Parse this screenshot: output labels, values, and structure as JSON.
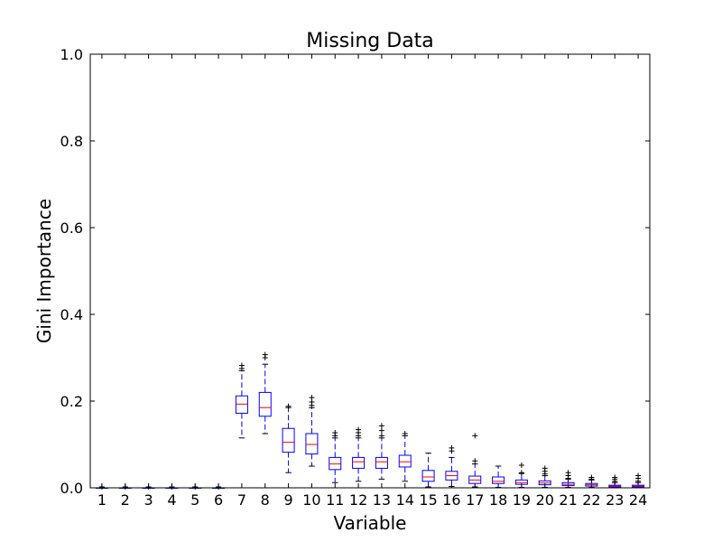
{
  "chart_data": {
    "type": "boxplot",
    "title": "Missing Data",
    "xlabel": "Variable",
    "ylabel": "Gini Importance",
    "ylim": [
      0,
      1
    ],
    "yticks": [
      "0.0",
      "0.2",
      "0.4",
      "0.6",
      "0.8",
      "1.0"
    ],
    "categories": [
      "1",
      "2",
      "3",
      "4",
      "5",
      "6",
      "7",
      "8",
      "9",
      "10",
      "11",
      "12",
      "13",
      "14",
      "15",
      "16",
      "17",
      "18",
      "19",
      "20",
      "21",
      "22",
      "23",
      "24"
    ],
    "grid": false,
    "colors": {
      "box": "#0000ff",
      "median": "#ff0000",
      "flier": "#000000"
    },
    "boxes": [
      {
        "whislo": 0.0,
        "q1": 0.0,
        "med": 0.0,
        "q3": 0.0,
        "whishi": 0.0,
        "fliers": [
          0.002
        ]
      },
      {
        "whislo": 0.0,
        "q1": 0.0,
        "med": 0.0,
        "q3": 0.0,
        "whishi": 0.0,
        "fliers": [
          0.002
        ]
      },
      {
        "whislo": 0.0,
        "q1": 0.0,
        "med": 0.0,
        "q3": 0.0,
        "whishi": 0.0,
        "fliers": [
          0.002
        ]
      },
      {
        "whislo": 0.0,
        "q1": 0.0,
        "med": 0.0,
        "q3": 0.0,
        "whishi": 0.0,
        "fliers": [
          0.002
        ]
      },
      {
        "whislo": 0.0,
        "q1": 0.0,
        "med": 0.0,
        "q3": 0.0,
        "whishi": 0.0,
        "fliers": [
          0.002
        ]
      },
      {
        "whislo": 0.0,
        "q1": 0.0,
        "med": 0.0,
        "q3": 0.0,
        "whishi": 0.0,
        "fliers": [
          0.002
        ]
      },
      {
        "whislo": 0.115,
        "q1": 0.172,
        "med": 0.193,
        "q3": 0.212,
        "whishi": 0.27,
        "fliers": [
          0.275,
          0.282
        ]
      },
      {
        "whislo": 0.125,
        "q1": 0.165,
        "med": 0.185,
        "q3": 0.22,
        "whishi": 0.285,
        "fliers": [
          0.3,
          0.307
        ]
      },
      {
        "whislo": 0.035,
        "q1": 0.082,
        "med": 0.105,
        "q3": 0.137,
        "whishi": 0.185,
        "fliers": [
          0.188
        ]
      },
      {
        "whislo": 0.05,
        "q1": 0.078,
        "med": 0.1,
        "q3": 0.125,
        "whishi": 0.185,
        "fliers": [
          0.19,
          0.198,
          0.208
        ]
      },
      {
        "whislo": 0.012,
        "q1": 0.042,
        "med": 0.055,
        "q3": 0.07,
        "whishi": 0.115,
        "fliers": [
          0.12,
          0.127
        ]
      },
      {
        "whislo": 0.015,
        "q1": 0.045,
        "med": 0.06,
        "q3": 0.07,
        "whishi": 0.115,
        "fliers": [
          0.12,
          0.127,
          0.134
        ]
      },
      {
        "whislo": 0.02,
        "q1": 0.045,
        "med": 0.06,
        "q3": 0.07,
        "whishi": 0.115,
        "fliers": [
          0.12,
          0.132,
          0.143
        ]
      },
      {
        "whislo": 0.015,
        "q1": 0.048,
        "med": 0.06,
        "q3": 0.075,
        "whishi": 0.12,
        "fliers": [
          0.125
        ]
      },
      {
        "whislo": 0.002,
        "q1": 0.015,
        "med": 0.025,
        "q3": 0.04,
        "whishi": 0.08,
        "fliers": []
      },
      {
        "whislo": 0.003,
        "q1": 0.018,
        "med": 0.028,
        "q3": 0.038,
        "whishi": 0.07,
        "fliers": [
          0.085,
          0.092
        ]
      },
      {
        "whislo": 0.002,
        "q1": 0.01,
        "med": 0.018,
        "q3": 0.027,
        "whishi": 0.055,
        "fliers": [
          0.062,
          0.12
        ]
      },
      {
        "whislo": 0.001,
        "q1": 0.01,
        "med": 0.015,
        "q3": 0.025,
        "whishi": 0.05,
        "fliers": []
      },
      {
        "whislo": 0.001,
        "q1": 0.008,
        "med": 0.012,
        "q3": 0.018,
        "whishi": 0.033,
        "fliers": [
          0.035,
          0.052
        ]
      },
      {
        "whislo": 0.001,
        "q1": 0.007,
        "med": 0.011,
        "q3": 0.016,
        "whishi": 0.028,
        "fliers": [
          0.032,
          0.038,
          0.045
        ]
      },
      {
        "whislo": 0.001,
        "q1": 0.005,
        "med": 0.008,
        "q3": 0.012,
        "whishi": 0.02,
        "fliers": [
          0.022,
          0.028,
          0.035
        ]
      },
      {
        "whislo": 0.001,
        "q1": 0.004,
        "med": 0.007,
        "q3": 0.01,
        "whishi": 0.018,
        "fliers": [
          0.02,
          0.024
        ]
      },
      {
        "whislo": 0.0,
        "q1": 0.002,
        "med": 0.004,
        "q3": 0.006,
        "whishi": 0.012,
        "fliers": [
          0.015,
          0.02,
          0.024
        ]
      },
      {
        "whislo": 0.0,
        "q1": 0.002,
        "med": 0.004,
        "q3": 0.006,
        "whishi": 0.012,
        "fliers": [
          0.015,
          0.022,
          0.028
        ]
      }
    ]
  }
}
